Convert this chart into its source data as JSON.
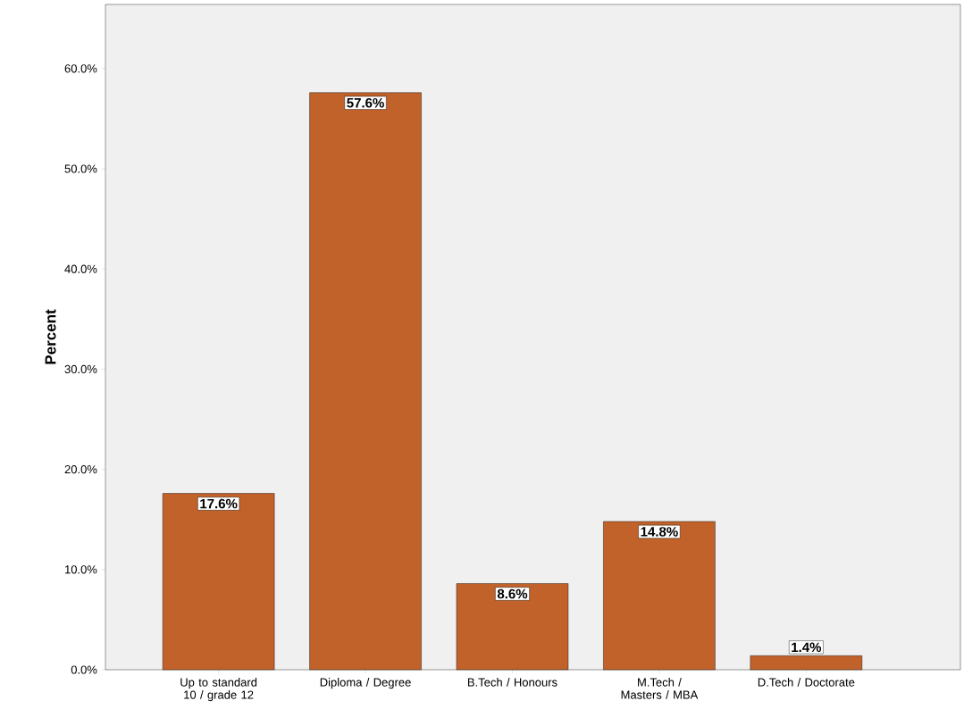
{
  "chart_data": {
    "type": "bar",
    "ylabel": "Percent",
    "categories": [
      "Up to standard 10 / grade 12",
      "Diploma / Degree",
      "B.Tech / Honours",
      "M.Tech / Masters / MBA",
      "D.Tech / Doctorate"
    ],
    "values": [
      17.6,
      57.6,
      8.6,
      14.8,
      1.4
    ],
    "value_labels": [
      "17.6%",
      "57.6%",
      "8.6%",
      "14.8%",
      "1.4%"
    ],
    "color": "#c0622a",
    "ylim": [
      0,
      66.4
    ],
    "yticks": [
      {
        "value": 0,
        "label": "0.0%"
      },
      {
        "value": 10,
        "label": "10.0%"
      },
      {
        "value": 20,
        "label": "20.0%"
      },
      {
        "value": 30,
        "label": "30.0%"
      },
      {
        "value": 40,
        "label": "40.0%"
      },
      {
        "value": 50,
        "label": "50.0%"
      },
      {
        "value": 60,
        "label": "60.0%"
      }
    ],
    "grid": false
  }
}
